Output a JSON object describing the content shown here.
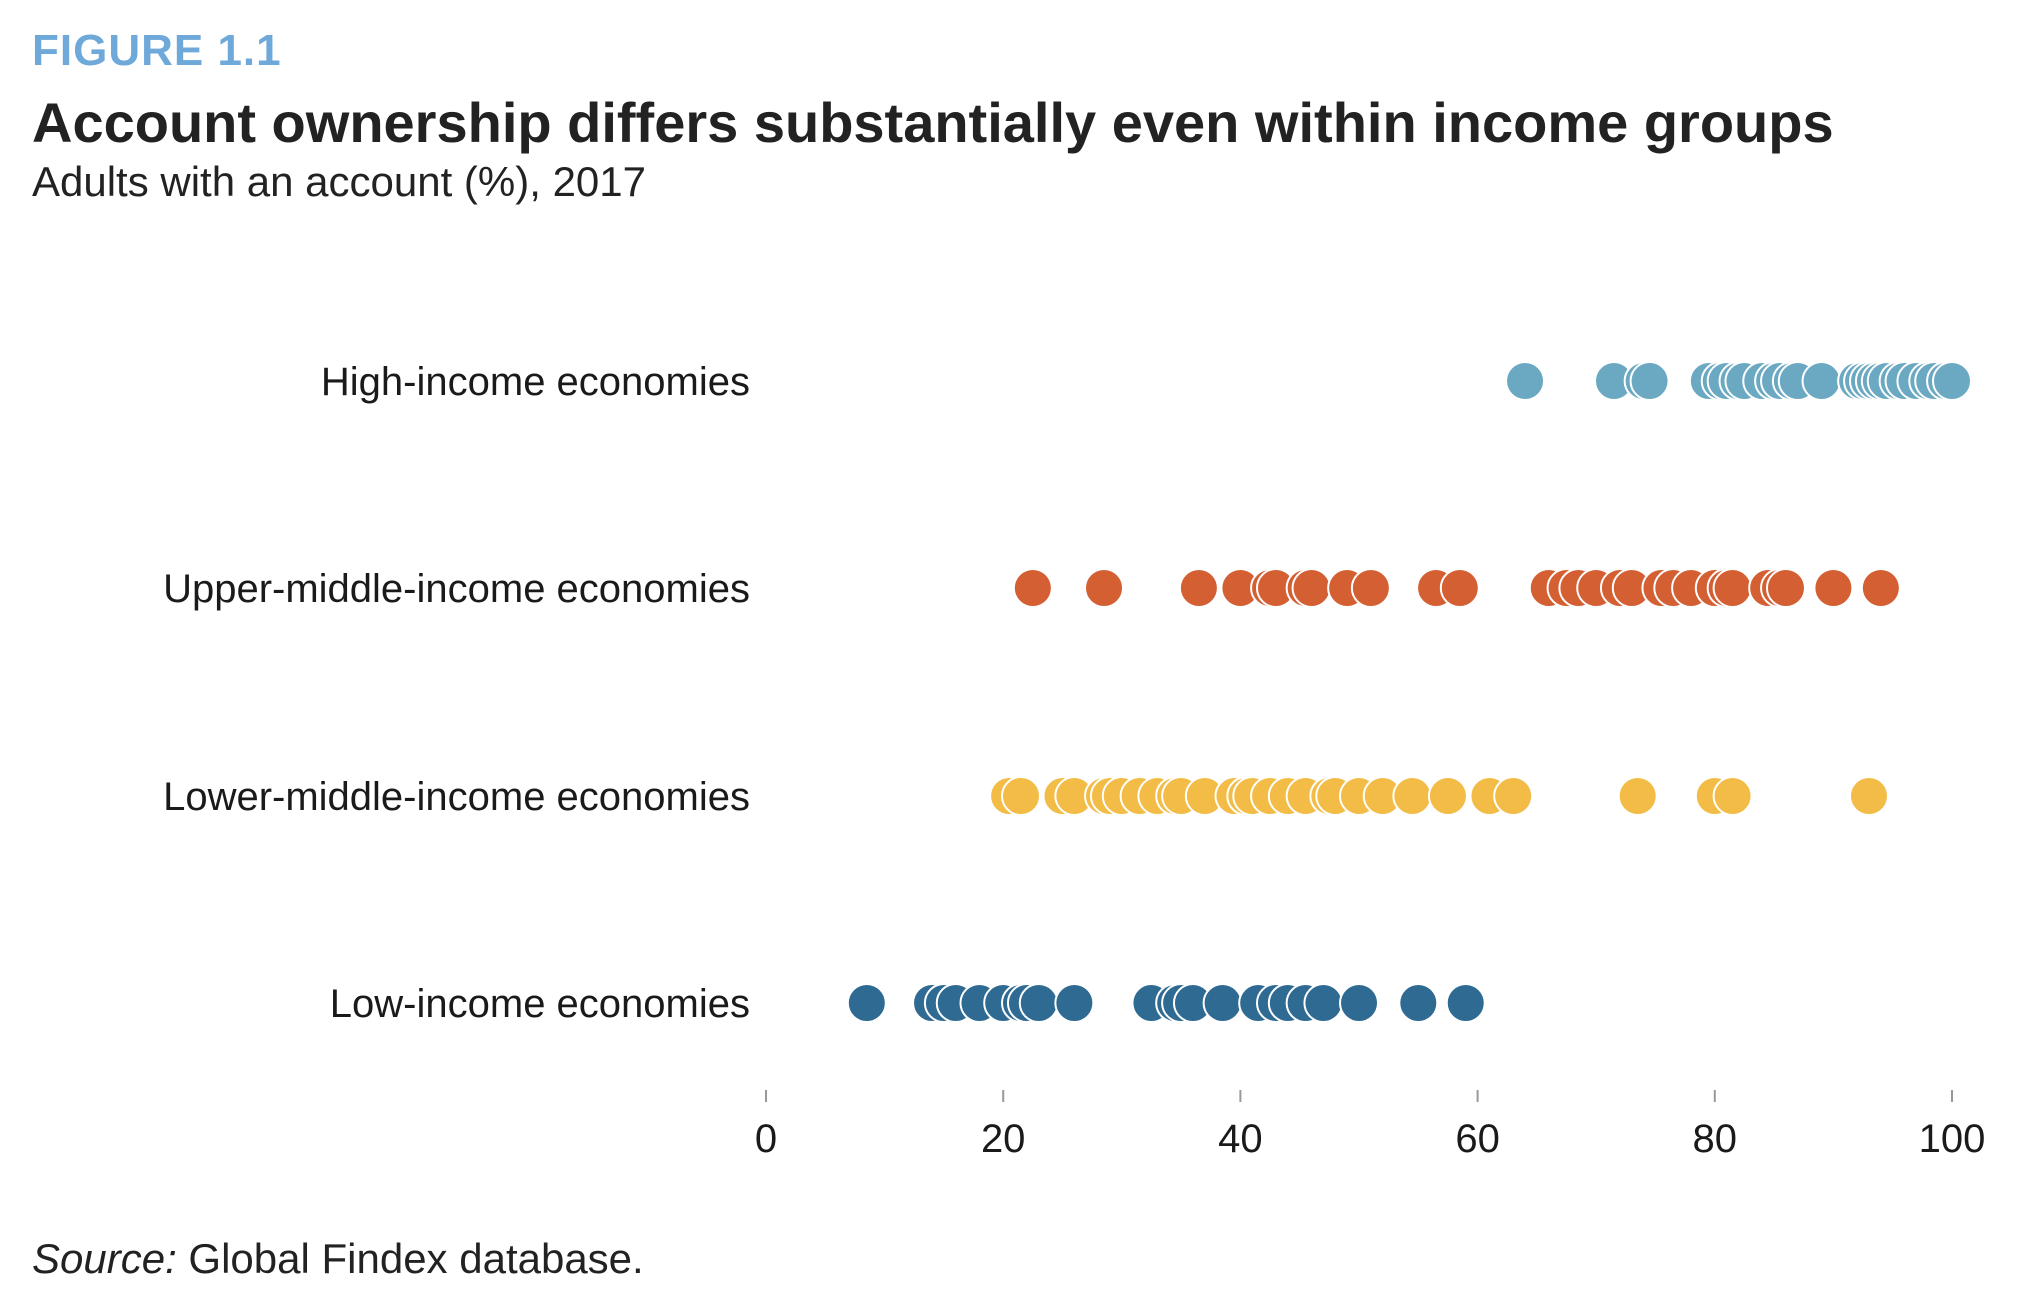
{
  "figure": {
    "label": "FIGURE 1.1",
    "title": "Account ownership differs substantially even within income groups",
    "subtitle": "Adults with an account (%), 2017",
    "source_prefix": "Source:",
    "source_text": " Global Findex database."
  },
  "chart_data": {
    "type": "scatter",
    "title": "Account ownership differs substantially even within income groups",
    "subtitle": "Adults with an account (%), 2017",
    "xlabel": "",
    "ylabel": "",
    "xlim": [
      0,
      100
    ],
    "xticks": [
      0,
      20,
      40,
      60,
      80,
      100
    ],
    "grid": false,
    "legend": "none",
    "categories": [
      "High-income economies",
      "Upper-middle-income economies",
      "Lower-middle-income economies",
      "Low-income economies"
    ],
    "series": [
      {
        "category": "High-income economies",
        "color": "#6ba9c3",
        "values": [
          64,
          71.5,
          74,
          74.5,
          79.5,
          80.5,
          81,
          82,
          82.5,
          84,
          85,
          85.5,
          86.5,
          87,
          89,
          92,
          92.5,
          93,
          93.5,
          94,
          94.5,
          95.5,
          96,
          97,
          98,
          98.5,
          99.5,
          100
        ]
      },
      {
        "category": "Upper-middle-income economies",
        "color": "#d45f32",
        "values": [
          22.5,
          28.5,
          36.5,
          40,
          42.5,
          43,
          45.5,
          46,
          49,
          51,
          56.5,
          58.5,
          66,
          67.5,
          68.5,
          70,
          72,
          73,
          75.5,
          76.5,
          78,
          80,
          81,
          81.5,
          84.5,
          85.5,
          86,
          90,
          94
        ]
      },
      {
        "category": "Lower-middle-income economies",
        "color": "#f2bc46",
        "values": [
          20.5,
          21.5,
          25,
          26,
          28.5,
          29,
          30,
          31.5,
          33,
          34.5,
          35,
          37,
          39.5,
          40.5,
          41,
          42.5,
          44,
          45.5,
          47.5,
          48,
          50,
          52,
          54.5,
          57.5,
          61,
          63,
          73.5,
          80,
          81.5,
          93
        ]
      },
      {
        "category": "Low-income economies",
        "color": "#2e6a92",
        "values": [
          8.5,
          14,
          15,
          16,
          18,
          20,
          21.5,
          22,
          23,
          26,
          32.5,
          34.5,
          35,
          36,
          38.5,
          41.5,
          43,
          44,
          45.5,
          47,
          50,
          55,
          59
        ]
      }
    ]
  }
}
